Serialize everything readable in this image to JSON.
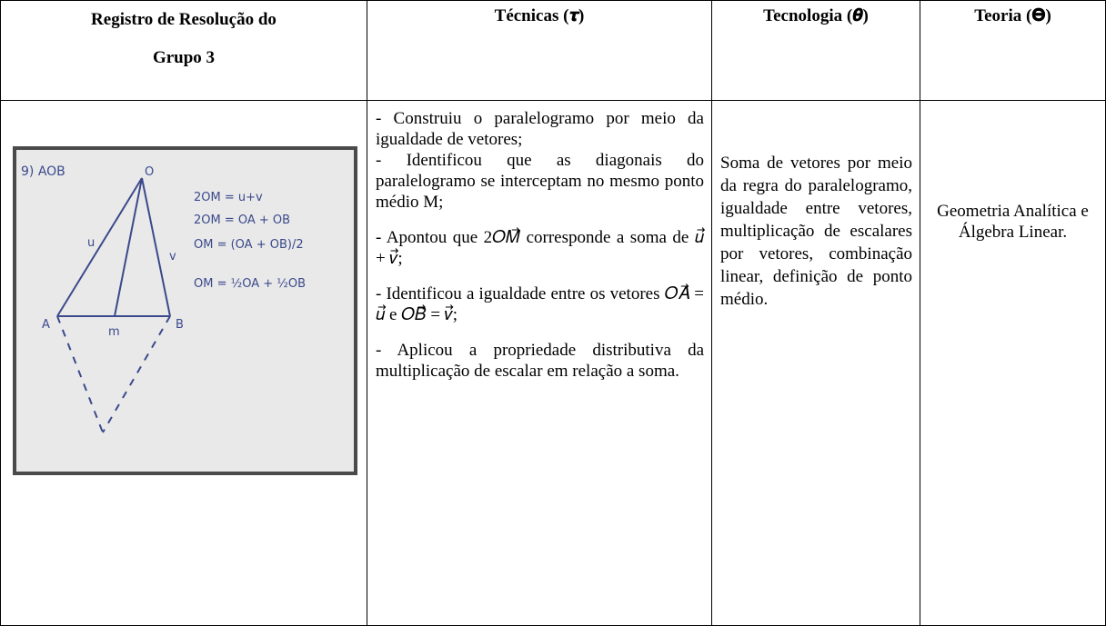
{
  "table": {
    "headers": [
      "Registro de Resolução do",
      "Grupo 3",
      "Técnicas (𝝉)",
      "Tecnologia (𝜽)",
      "Teoria (𝚯)"
    ],
    "image_labels": [
      "9) AOB",
      "O",
      "A",
      "m",
      "B",
      "u",
      "v",
      "2OM = u+v",
      "2OM = OA + OB",
      "OM = (OA + OB)/2",
      "OM = ½OA + ½OB"
    ],
    "techniques": [
      "- Construiu o paralelogramo por meio da igualdade de vetores;",
      "- Identificou que as diagonais do paralelogramo se interceptam no mesmo ponto médio M;",
      "- Apontou que 2𝑂𝑀⃗ corresponde a soma de 𝑢⃗ + 𝑣⃗;",
      "- Identificou a igualdade entre os vetores 𝑂𝐴⃗ = 𝑢⃗ e 𝑂𝐵⃗ = 𝑣⃗;",
      "- Aplicou a propriedade distributiva da multiplicação de escalar em relação a soma."
    ],
    "technology": "Soma de vetores por meio da regra do paralelogramo, igualdade entre vetores, multiplicação de escalares por vetores, combinação linear, definição de ponto médio.",
    "theory": "Geometria Analítica e Álgebra Linear."
  }
}
